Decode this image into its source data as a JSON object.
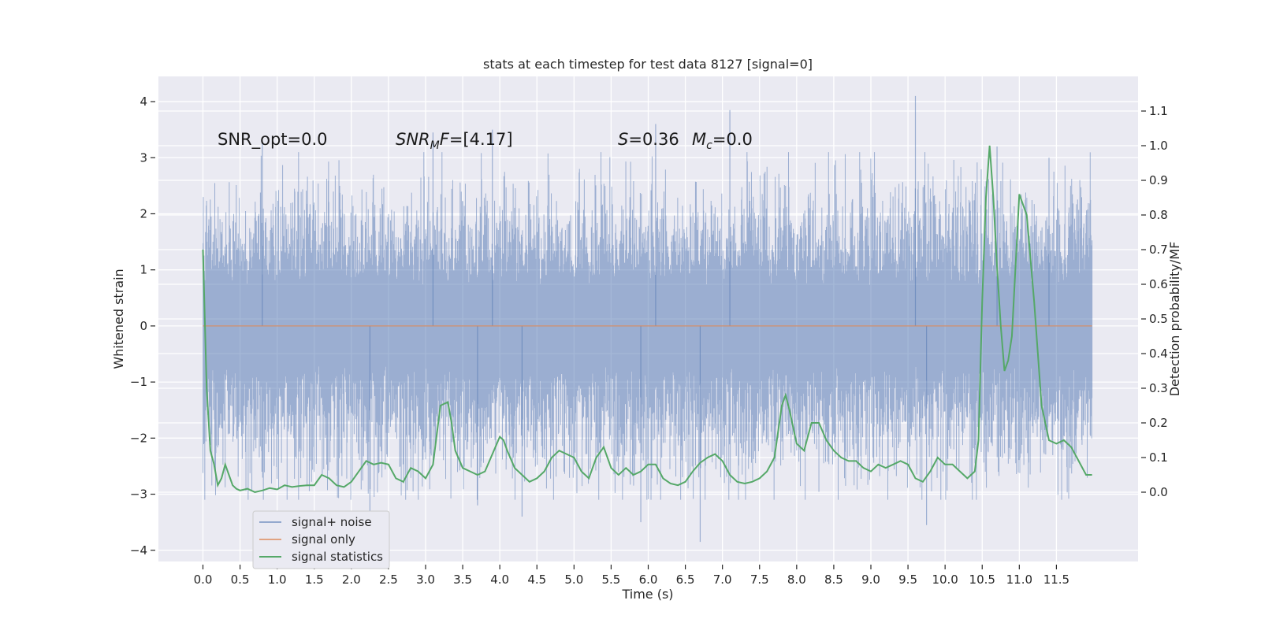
{
  "chart_data": {
    "type": "line",
    "title": "stats at each timestep for test data 8127 [signal=0]",
    "xlabel": "Time (s)",
    "ylabel_left": "Whitened strain",
    "ylabel_right": "Detection probability/MF",
    "xlim": [
      -0.6,
      12.6
    ],
    "ylim_left": [
      -4.2,
      4.45
    ],
    "ylim_right": [
      -0.2,
      1.2
    ],
    "x_ticks": [
      "0.0",
      "0.5",
      "1.0",
      "1.5",
      "2.0",
      "2.5",
      "3.0",
      "3.5",
      "4.0",
      "4.5",
      "5.0",
      "5.5",
      "6.0",
      "6.5",
      "7.0",
      "7.5",
      "8.0",
      "8.5",
      "9.0",
      "9.5",
      "10.0",
      "10.5",
      "11.0",
      "11.5"
    ],
    "y_ticks_left": [
      "−4",
      "−3",
      "−2",
      "−1",
      "0",
      "1",
      "2",
      "3",
      "4"
    ],
    "y_ticks_right": [
      "0.0",
      "0.1",
      "0.2",
      "0.3",
      "0.4",
      "0.5",
      "0.6",
      "0.7",
      "0.8",
      "0.9",
      "1.0",
      "1.1"
    ],
    "grid": true,
    "legend_position": "lower-left",
    "annotations": {
      "snr_opt": "SNR_opt=0.0",
      "snr_mf_name": "SNR",
      "snr_mf_sub": "M",
      "snr_mf_after": "F=[4.17]",
      "s_name": "S",
      "s_value": "=0.36",
      "mc_name": "M",
      "mc_sub": "c",
      "mc_value": "=0.0"
    },
    "series": [
      {
        "name": "signal+ noise",
        "color": "#4c72b0",
        "opacity": 0.5,
        "x_range": [
          0.0,
          11.98
        ],
        "band_typical": [
          -1.75,
          1.4
        ],
        "max": 4.1,
        "min": -3.85,
        "peaks": [
          [
            0.8,
            3.3
          ],
          [
            3.1,
            3.45
          ],
          [
            3.9,
            3.5
          ],
          [
            6.1,
            3.6
          ],
          [
            7.1,
            3.85
          ],
          [
            9.6,
            4.1
          ],
          [
            6.7,
            -3.85
          ],
          [
            9.75,
            -3.55
          ],
          [
            2.25,
            -3.4
          ],
          [
            4.3,
            -3.4
          ],
          [
            3.7,
            -3.2
          ],
          [
            5.9,
            -3.5
          ],
          [
            10.7,
            3.2
          ],
          [
            11.4,
            3.0
          ]
        ]
      },
      {
        "name": "signal only",
        "color": "#dd8452",
        "values_constant": 0.0,
        "x_range": [
          0.0,
          11.98
        ]
      },
      {
        "name": "signal statistics",
        "color": "#55a868",
        "x": [
          0.0,
          0.05,
          0.1,
          0.15,
          0.2,
          0.25,
          0.3,
          0.35,
          0.4,
          0.45,
          0.5,
          0.6,
          0.7,
          0.8,
          0.9,
          1.0,
          1.1,
          1.2,
          1.3,
          1.4,
          1.5,
          1.6,
          1.7,
          1.8,
          1.9,
          2.0,
          2.1,
          2.2,
          2.3,
          2.4,
          2.5,
          2.6,
          2.7,
          2.8,
          2.9,
          3.0,
          3.1,
          3.2,
          3.3,
          3.35,
          3.4,
          3.5,
          3.6,
          3.7,
          3.8,
          3.9,
          4.0,
          4.05,
          4.1,
          4.2,
          4.3,
          4.4,
          4.5,
          4.6,
          4.7,
          4.8,
          4.9,
          5.0,
          5.1,
          5.2,
          5.3,
          5.4,
          5.5,
          5.6,
          5.7,
          5.8,
          5.9,
          6.0,
          6.1,
          6.2,
          6.3,
          6.4,
          6.5,
          6.6,
          6.7,
          6.8,
          6.9,
          7.0,
          7.1,
          7.2,
          7.3,
          7.4,
          7.5,
          7.6,
          7.7,
          7.8,
          7.85,
          7.9,
          8.0,
          8.1,
          8.2,
          8.3,
          8.4,
          8.5,
          8.6,
          8.7,
          8.8,
          8.9,
          9.0,
          9.1,
          9.2,
          9.3,
          9.4,
          9.5,
          9.6,
          9.7,
          9.8,
          9.9,
          10.0,
          10.1,
          10.2,
          10.3,
          10.4,
          10.45,
          10.5,
          10.55,
          10.6,
          10.65,
          10.7,
          10.75,
          10.8,
          10.85,
          10.9,
          11.0,
          11.1,
          11.2,
          11.3,
          11.4,
          11.5,
          11.6,
          11.7,
          11.8,
          11.9,
          11.98
        ],
        "values": [
          0.7,
          0.3,
          0.12,
          0.08,
          0.02,
          0.04,
          0.08,
          0.05,
          0.02,
          0.01,
          0.005,
          0.01,
          0.0,
          0.005,
          0.012,
          0.008,
          0.02,
          0.015,
          0.018,
          0.02,
          0.02,
          0.05,
          0.04,
          0.02,
          0.015,
          0.03,
          0.06,
          0.09,
          0.08,
          0.085,
          0.08,
          0.04,
          0.03,
          0.07,
          0.06,
          0.04,
          0.08,
          0.25,
          0.26,
          0.2,
          0.12,
          0.07,
          0.06,
          0.05,
          0.06,
          0.11,
          0.16,
          0.15,
          0.12,
          0.07,
          0.05,
          0.03,
          0.04,
          0.06,
          0.1,
          0.12,
          0.11,
          0.1,
          0.06,
          0.04,
          0.1,
          0.13,
          0.07,
          0.05,
          0.07,
          0.05,
          0.06,
          0.08,
          0.08,
          0.04,
          0.025,
          0.02,
          0.03,
          0.06,
          0.085,
          0.1,
          0.11,
          0.09,
          0.05,
          0.03,
          0.025,
          0.03,
          0.04,
          0.06,
          0.1,
          0.25,
          0.28,
          0.24,
          0.14,
          0.12,
          0.2,
          0.2,
          0.15,
          0.12,
          0.1,
          0.09,
          0.09,
          0.07,
          0.06,
          0.08,
          0.07,
          0.08,
          0.09,
          0.08,
          0.04,
          0.03,
          0.06,
          0.1,
          0.08,
          0.08,
          0.06,
          0.04,
          0.06,
          0.15,
          0.55,
          0.85,
          1.0,
          0.85,
          0.65,
          0.48,
          0.35,
          0.38,
          0.45,
          0.86,
          0.8,
          0.55,
          0.25,
          0.15,
          0.14,
          0.15,
          0.13,
          0.09,
          0.05,
          0.05
        ]
      }
    ]
  }
}
